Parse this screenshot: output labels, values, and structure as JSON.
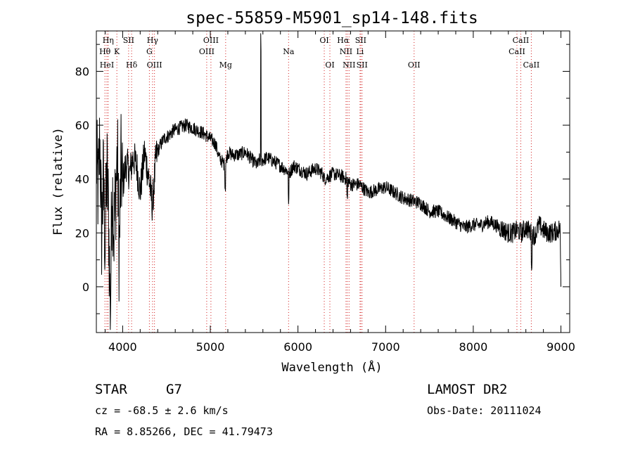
{
  "chart_data": {
    "type": "line",
    "title": "spec-55859-M5901_sp14-148.fits",
    "xlabel": "Wavelength (Å)",
    "ylabel": "Flux (relative)",
    "xlim": [
      3700,
      9100
    ],
    "ylim": [
      -17,
      95
    ],
    "x_ticks": [
      4000,
      5000,
      6000,
      7000,
      8000,
      9000
    ],
    "y_ticks": [
      0,
      20,
      40,
      60,
      80
    ],
    "grid": false,
    "legend": "none",
    "series": [
      {
        "x": [
          3700,
          3720,
          3740,
          3760,
          3780,
          3800,
          3820,
          3840,
          3860,
          3880,
          3900,
          3920,
          3940,
          3960,
          3980,
          4000,
          4040,
          4080,
          4120,
          4160,
          4200,
          4250,
          4300,
          4340,
          4380,
          4420,
          4470,
          4520,
          4580,
          4650,
          4720,
          4800,
          4860,
          4920,
          5000,
          5060,
          5100,
          5170,
          5200,
          5250,
          5320,
          5400,
          5480,
          5540,
          5560,
          5600,
          5650,
          5700,
          5800,
          5880,
          5900,
          5950,
          6000,
          6100,
          6200,
          6280,
          6300,
          6400,
          6500,
          6560,
          6600,
          6700,
          6800,
          6900,
          7000,
          7100,
          7200,
          7300,
          7400,
          7500,
          7600,
          7700,
          7800,
          7900,
          8000,
          8100,
          8150,
          8200,
          8300,
          8350,
          8400,
          8450,
          8500,
          8550,
          8600,
          8660,
          8700,
          8750,
          8800,
          8850,
          8900,
          8960,
          8990,
          9000
        ],
        "y": [
          48,
          35,
          55,
          20,
          40,
          15,
          45,
          25,
          -10,
          40,
          20,
          35,
          50,
          10,
          45,
          38,
          46,
          42,
          48,
          45,
          35,
          50,
          40,
          30,
          48,
          52,
          55,
          56,
          58,
          59,
          60,
          59,
          58,
          57,
          55,
          53,
          48,
          45,
          50,
          49,
          49,
          50,
          47,
          45,
          47,
          47,
          48,
          47,
          45,
          43,
          42,
          45,
          44,
          42,
          44,
          42,
          40,
          42,
          41,
          40,
          38,
          38,
          35,
          36,
          37,
          35,
          33,
          32,
          31,
          28,
          28,
          26,
          24,
          22,
          23,
          23,
          24,
          24,
          22,
          21,
          20,
          20,
          21,
          20,
          22,
          20,
          19,
          23,
          21,
          20,
          20,
          21,
          22,
          0
        ]
      }
    ],
    "spectral_lines": [
      {
        "name": "Hη",
        "wl": 3835,
        "row": 0,
        "dx": 0
      },
      {
        "name": "Hθ",
        "wl": 3798,
        "row": 1,
        "dx": 0
      },
      {
        "name": "HeI",
        "wl": 3820,
        "row": 2,
        "dx": 0
      },
      {
        "name": "K",
        "wl": 3934,
        "row": 1,
        "dx": 0
      },
      {
        "name": "SII",
        "wl": 4068,
        "row": 0,
        "dx": 0
      },
      {
        "name": "Hδ",
        "wl": 4102,
        "row": 2,
        "dx": 0
      },
      {
        "name": "Hγ",
        "wl": 4341,
        "row": 0,
        "dx": 0
      },
      {
        "name": "G",
        "wl": 4305,
        "row": 1,
        "dx": 0
      },
      {
        "name": "OIII",
        "wl": 4363,
        "row": 2,
        "dx": 0
      },
      {
        "name": "OIII",
        "wl": 5007,
        "row": 0,
        "dx": 0
      },
      {
        "name": "OIII",
        "wl": 4959,
        "row": 1,
        "dx": 0
      },
      {
        "name": "Mg",
        "wl": 5175,
        "row": 2,
        "dx": 0
      },
      {
        "name": "Na",
        "wl": 5893,
        "row": 1,
        "dx": 0
      },
      {
        "name": "OI",
        "wl": 6300,
        "row": 0,
        "dx": 0
      },
      {
        "name": "OI",
        "wl": 6364,
        "row": 2,
        "dx": 0
      },
      {
        "name": "Hα",
        "wl": 6563,
        "row": 0,
        "dx": -6
      },
      {
        "name": "SII",
        "wl": 6716,
        "row": 0,
        "dx": 0
      },
      {
        "name": "NII",
        "wl": 6548,
        "row": 1,
        "dx": 0
      },
      {
        "name": "Li",
        "wl": 6708,
        "row": 1,
        "dx": 0
      },
      {
        "name": "NII",
        "wl": 6583,
        "row": 2,
        "dx": 0
      },
      {
        "name": "SII",
        "wl": 6731,
        "row": 2,
        "dx": 0
      },
      {
        "name": "OII",
        "wl": 7325,
        "row": 2,
        "dx": 0
      },
      {
        "name": "CaII",
        "wl": 8542,
        "row": 0,
        "dx": 0
      },
      {
        "name": "CaII",
        "wl": 8498,
        "row": 1,
        "dx": 0
      },
      {
        "name": "CaII",
        "wl": 8662,
        "row": 2,
        "dx": 0
      }
    ]
  },
  "info": {
    "class_type": "STAR",
    "subclass": "G7",
    "survey": "LAMOST DR2",
    "redshift": "cz = -68.5 ± 2.6 km/s",
    "obs_date": "Obs-Date: 20111024",
    "coords": "RA =   8.85266, DEC =  41.79473"
  }
}
